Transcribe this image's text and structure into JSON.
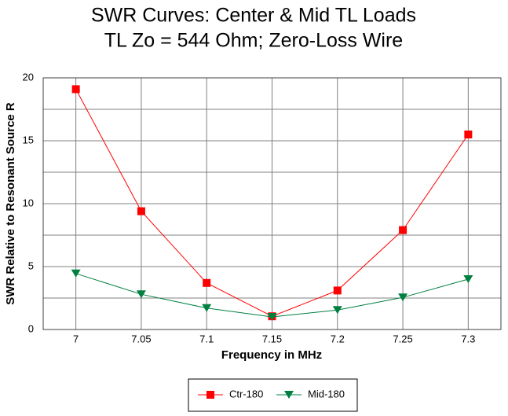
{
  "chart_data": {
    "type": "line",
    "title": "SWR Curves:  Center & Mid TL Loads",
    "subtitle": "TL Zo = 544 Ohm; Zero-Loss Wire",
    "x_label": "Frequency in MHz",
    "y_label": "SWR Relative to Resonant Source R",
    "x": [
      7,
      7.05,
      7.1,
      7.15,
      7.2,
      7.25,
      7.3
    ],
    "series": [
      {
        "name": "Ctr-180",
        "color": "#ff0000",
        "marker": "square",
        "values": [
          19.1,
          9.4,
          3.7,
          1.05,
          3.1,
          7.9,
          15.5
        ]
      },
      {
        "name": "Mid-180",
        "color": "#008040",
        "marker": "triangle-down",
        "values": [
          4.45,
          2.8,
          1.7,
          1.0,
          1.55,
          2.55,
          4.0
        ]
      }
    ],
    "xlim": [
      6.975,
      7.325
    ],
    "xticks": [
      7,
      7.05,
      7.1,
      7.15,
      7.2,
      7.25,
      7.3
    ],
    "ylim": [
      0,
      20
    ],
    "yticks": [
      0,
      5,
      10,
      15,
      20
    ],
    "y_minor_ticks": [
      2.5,
      7.5,
      12.5,
      17.5
    ],
    "grid": true,
    "legend": "bottom"
  }
}
